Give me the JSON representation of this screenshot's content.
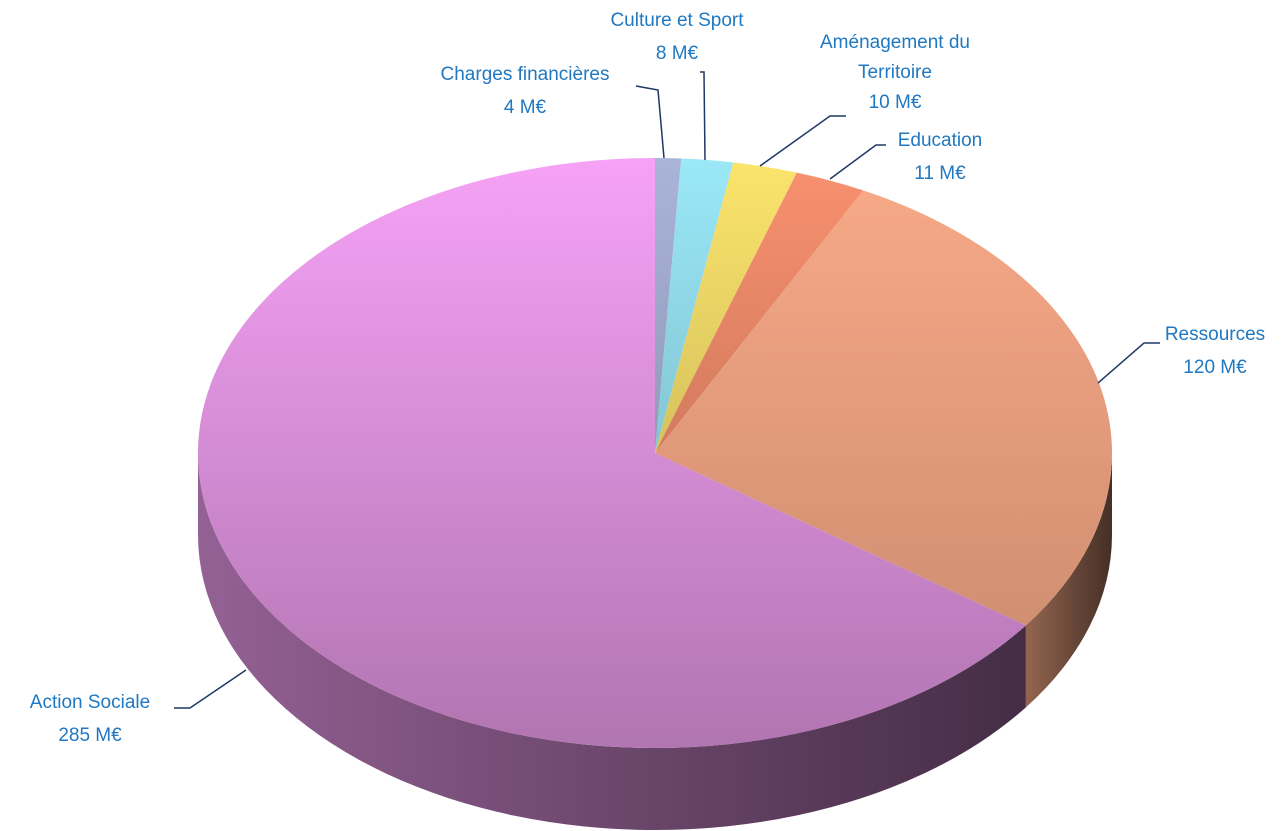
{
  "chart_data": {
    "type": "pie3d",
    "categories": [
      "Charges financières",
      "Culture et Sport",
      "Aménagement du Territoire",
      "Education",
      "Ressources",
      "Action Sociale"
    ],
    "values": [
      4,
      8,
      10,
      11,
      120,
      285
    ],
    "value_labels": [
      "4 M€",
      "8 M€",
      "10 M€",
      "11 M€",
      "120 M€",
      "285 M€"
    ],
    "colors": [
      "#aab4d8",
      "#9ae8f8",
      "#fbe46c",
      "#f7906e",
      "#f6a886",
      "#f6a2f6"
    ]
  }
}
